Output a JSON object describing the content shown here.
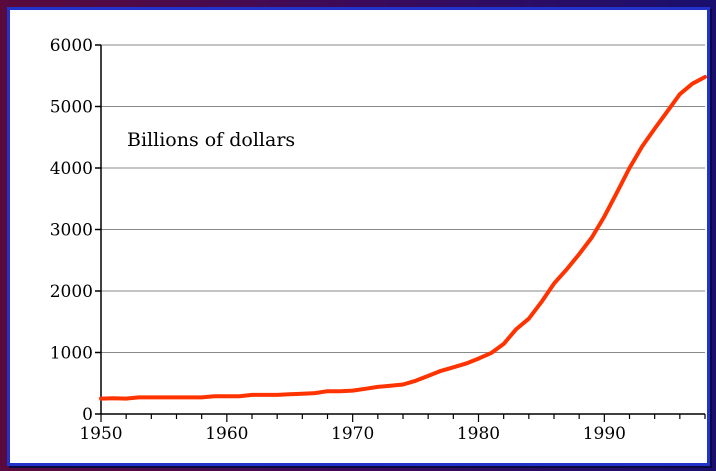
{
  "colors": {
    "line": "#ff3300",
    "frame_border": "#2233cc",
    "grid": "#888888",
    "axis": "#000000"
  },
  "chart_data": {
    "type": "line",
    "title": "",
    "xlabel": "",
    "ylabel": "",
    "annotation": "Billions of dollars",
    "xlim": [
      1950,
      1998
    ],
    "ylim": [
      0,
      6000
    ],
    "grid": true,
    "x_ticks": [
      "1950",
      "1960",
      "1970",
      "1980",
      "1990"
    ],
    "y_ticks": [
      "0",
      "1000",
      "2000",
      "3000",
      "4000",
      "5000",
      "6000"
    ],
    "series": [
      {
        "x": [
          1950,
          1951,
          1952,
          1953,
          1954,
          1955,
          1956,
          1957,
          1958,
          1959,
          1960,
          1961,
          1962,
          1963,
          1964,
          1965,
          1966,
          1967,
          1968,
          1969,
          1970,
          1971,
          1972,
          1973,
          1974,
          1975,
          1976,
          1977,
          1978,
          1979,
          1980,
          1981,
          1982,
          1983,
          1984,
          1985,
          1986,
          1987,
          1988,
          1989,
          1990,
          1991,
          1992,
          1993,
          1994,
          1995,
          1996,
          1997,
          1998
        ],
        "values": [
          250,
          255,
          250,
          270,
          270,
          270,
          270,
          270,
          270,
          290,
          290,
          290,
          310,
          310,
          310,
          320,
          330,
          340,
          370,
          370,
          380,
          410,
          440,
          460,
          480,
          540,
          620,
          700,
          760,
          820,
          900,
          990,
          1140,
          1380,
          1550,
          1820,
          2120,
          2350,
          2600,
          2870,
          3210,
          3600,
          4000,
          4350,
          4640,
          4920,
          5200,
          5370,
          5480
        ]
      }
    ]
  }
}
